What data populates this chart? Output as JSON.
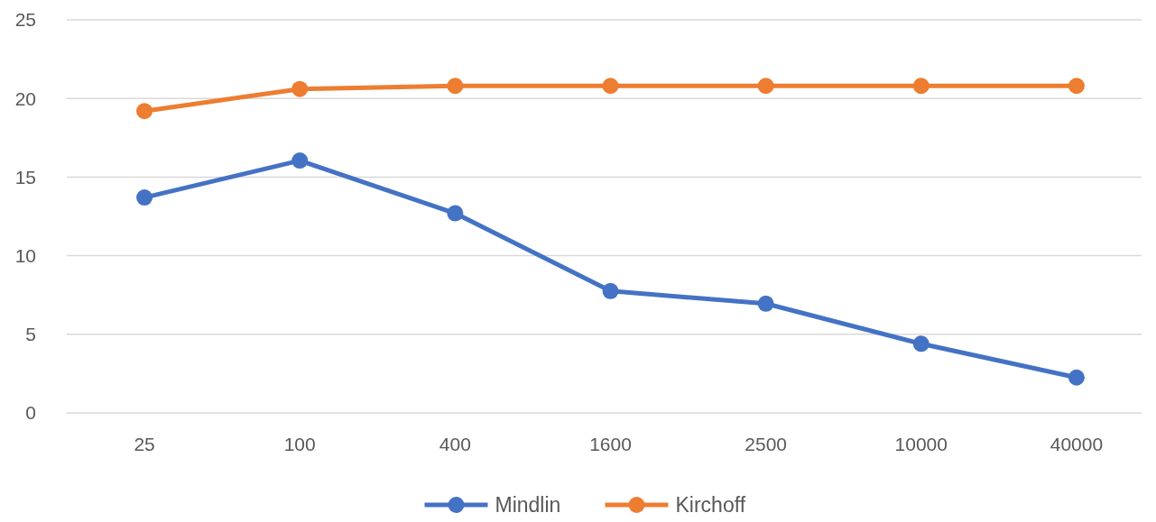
{
  "chart_data": {
    "type": "line",
    "categories": [
      "25",
      "100",
      "400",
      "1600",
      "2500",
      "10000",
      "40000"
    ],
    "series": [
      {
        "name": "Mindlin",
        "color": "#4472c4",
        "values": [
          13.7,
          16.05,
          12.7,
          7.75,
          6.95,
          4.4,
          2.25
        ]
      },
      {
        "name": "Kirchoff",
        "color": "#ed7d31",
        "values": [
          19.2,
          20.6,
          20.8,
          20.8,
          20.8,
          20.8,
          20.8
        ]
      }
    ],
    "ylim": [
      0,
      25
    ],
    "yticks": [
      0,
      5,
      10,
      15,
      20,
      25
    ],
    "grid": "y",
    "legend": "bottom",
    "marker": "circle",
    "line_style": "solid"
  }
}
